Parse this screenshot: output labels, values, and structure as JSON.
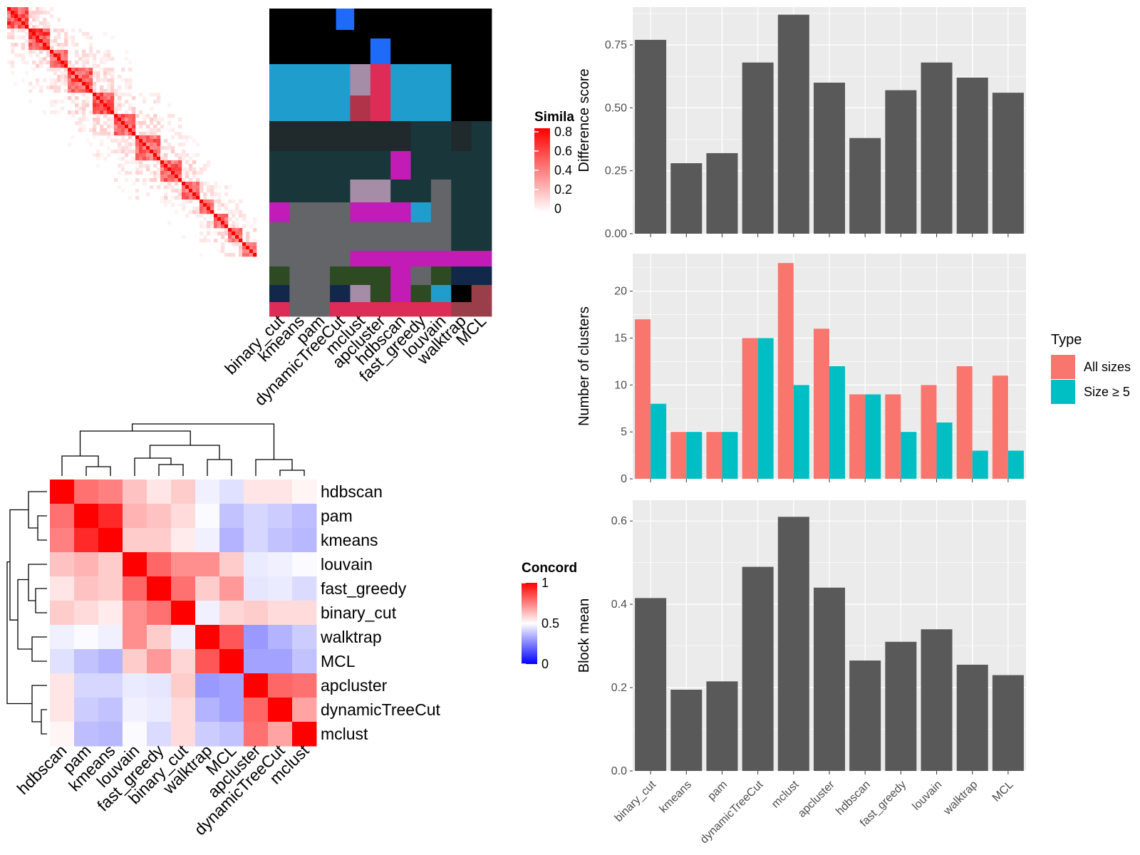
{
  "colors": {
    "panel_bg": "#ebebeb",
    "gridline": "#ffffff",
    "bar": "#595959",
    "all_sizes": "#f8766d",
    "size_ge5": "#00bfc4",
    "heat_high": "#ff0000",
    "heat_mid": "#ffffff",
    "heat_low": "#0000ff"
  },
  "similarity_legend": {
    "title": "Simila",
    "ticks": [
      "0.8",
      "0.6",
      "0.4",
      "0.2",
      "0"
    ]
  },
  "concordance_legend": {
    "title": "Concord",
    "ticks": [
      "1",
      "0.5",
      "0"
    ]
  },
  "membership_columns": [
    "binary_cut",
    "kmeans",
    "pam",
    "dynamicTreeCut",
    "mclust",
    "apcluster",
    "hdbscan",
    "fast_greedy",
    "louvain",
    "walktrap",
    "MCL"
  ],
  "chart_data": [
    {
      "type": "bar",
      "categories": [
        "binary_cut",
        "kmeans",
        "pam",
        "dynamicTreeCut",
        "mclust",
        "apcluster",
        "hdbscan",
        "fast_greedy",
        "louvain",
        "walktrap",
        "MCL"
      ],
      "values": [
        0.77,
        0.28,
        0.32,
        0.68,
        0.87,
        0.6,
        0.38,
        0.57,
        0.68,
        0.62,
        0.56
      ],
      "ylabel": "Difference score",
      "ylim": [
        0,
        0.9
      ],
      "yticks": [
        "0.00",
        "0.25",
        "0.50",
        "0.75"
      ],
      "grid": true
    },
    {
      "type": "bar",
      "categories": [
        "binary_cut",
        "kmeans",
        "pam",
        "dynamicTreeCut",
        "mclust",
        "apcluster",
        "hdbscan",
        "fast_greedy",
        "louvain",
        "walktrap",
        "MCL"
      ],
      "series": [
        {
          "name": "All sizes",
          "values": [
            17,
            5,
            5,
            15,
            23,
            16,
            9,
            9,
            10,
            12,
            11
          ]
        },
        {
          "name": "Size ≥ 5",
          "values": [
            8,
            5,
            5,
            15,
            10,
            12,
            9,
            5,
            6,
            3,
            3
          ]
        }
      ],
      "ylabel": "Number of clusters",
      "ylim": [
        0,
        24
      ],
      "yticks": [
        "0",
        "5",
        "10",
        "15",
        "20"
      ],
      "legend": {
        "title": "Type",
        "position": "right"
      },
      "grid": true
    },
    {
      "type": "bar",
      "categories": [
        "binary_cut",
        "kmeans",
        "pam",
        "dynamicTreeCut",
        "mclust",
        "apcluster",
        "hdbscan",
        "fast_greedy",
        "louvain",
        "walktrap",
        "MCL"
      ],
      "values": [
        0.415,
        0.195,
        0.215,
        0.49,
        0.61,
        0.44,
        0.265,
        0.31,
        0.34,
        0.255,
        0.23
      ],
      "ylabel": "Block mean",
      "ylim": [
        0,
        0.65
      ],
      "yticks": [
        "0.0",
        "0.2",
        "0.4",
        "0.6"
      ],
      "grid": true
    },
    {
      "type": "heatmap",
      "rows": [
        "hdbscan",
        "pam",
        "kmeans",
        "louvain",
        "fast_greedy",
        "binary_cut",
        "walktrap",
        "MCL",
        "apcluster",
        "dynamicTreeCut",
        "mclust"
      ],
      "columns": [
        "hdbscan",
        "pam",
        "kmeans",
        "louvain",
        "fast_greedy",
        "binary_cut",
        "walktrap",
        "MCL",
        "apcluster",
        "dynamicTreeCut",
        "mclust"
      ],
      "values": [
        [
          1.0,
          0.78,
          0.75,
          0.62,
          0.55,
          0.6,
          0.47,
          0.44,
          0.55,
          0.55,
          0.52
        ],
        [
          0.78,
          1.0,
          0.92,
          0.65,
          0.62,
          0.57,
          0.49,
          0.38,
          0.42,
          0.4,
          0.37
        ],
        [
          0.75,
          0.92,
          1.0,
          0.6,
          0.6,
          0.54,
          0.47,
          0.35,
          0.42,
          0.38,
          0.36
        ],
        [
          0.62,
          0.65,
          0.6,
          1.0,
          0.8,
          0.72,
          0.72,
          0.6,
          0.46,
          0.47,
          0.49
        ],
        [
          0.55,
          0.62,
          0.6,
          0.8,
          1.0,
          0.78,
          0.6,
          0.7,
          0.45,
          0.46,
          0.43
        ],
        [
          0.6,
          0.57,
          0.54,
          0.72,
          0.78,
          1.0,
          0.47,
          0.58,
          0.6,
          0.57,
          0.57
        ],
        [
          0.47,
          0.49,
          0.47,
          0.72,
          0.6,
          0.47,
          1.0,
          0.83,
          0.3,
          0.35,
          0.4
        ],
        [
          0.44,
          0.38,
          0.35,
          0.6,
          0.7,
          0.58,
          0.83,
          1.0,
          0.32,
          0.32,
          0.38
        ],
        [
          0.55,
          0.42,
          0.42,
          0.46,
          0.45,
          0.6,
          0.3,
          0.32,
          1.0,
          0.8,
          0.78
        ],
        [
          0.55,
          0.4,
          0.38,
          0.47,
          0.46,
          0.57,
          0.35,
          0.32,
          0.8,
          1.0,
          0.68
        ],
        [
          0.52,
          0.37,
          0.36,
          0.49,
          0.43,
          0.57,
          0.4,
          0.38,
          0.78,
          0.68,
          1.0
        ]
      ],
      "scale": [
        0,
        0.5,
        1
      ]
    }
  ]
}
